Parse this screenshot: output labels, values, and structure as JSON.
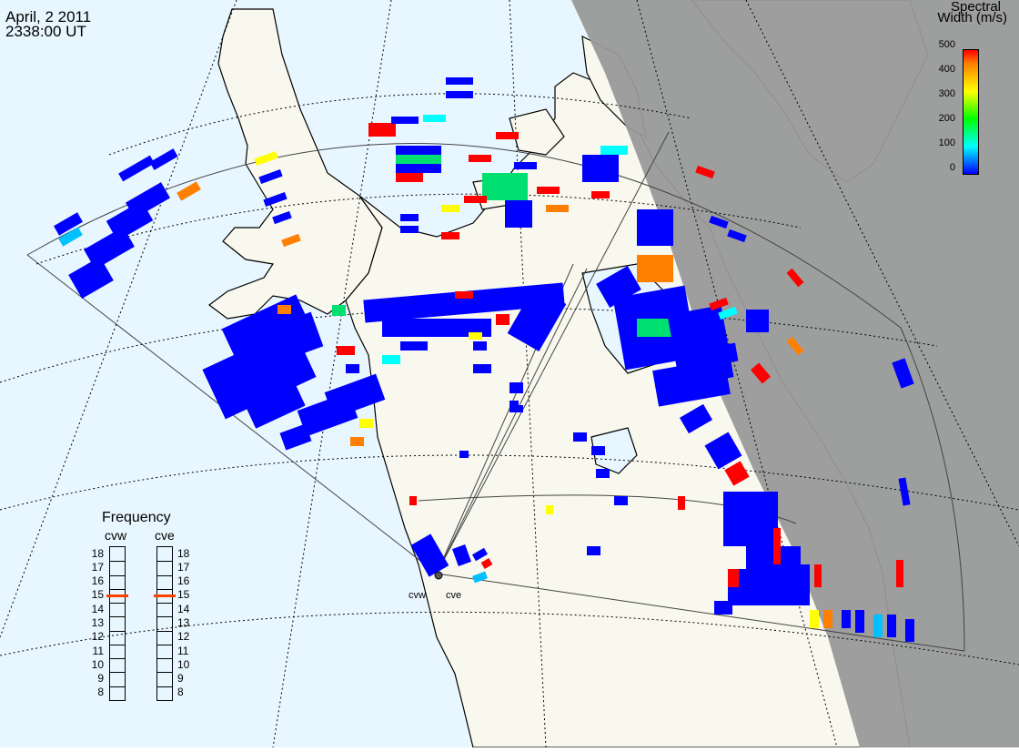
{
  "header": {
    "date": "April, 2 2011",
    "time": "2338:00 UT"
  },
  "colorbar": {
    "title_line1": "Spectral",
    "title_line2": "Width (m/s)",
    "ticks": [
      "500",
      "400",
      "300",
      "200",
      "100",
      "0"
    ],
    "scale": [
      "#0000ff",
      "#0080ff",
      "#00ffff",
      "#00ff80",
      "#00ff00",
      "#80ff00",
      "#ffff00",
      "#ffc000",
      "#ff8000",
      "#ff0000"
    ]
  },
  "frequency_panel": {
    "title": "Frequency",
    "radars": [
      {
        "name": "cvw",
        "selected": "15"
      },
      {
        "name": "cve",
        "selected": "15"
      }
    ],
    "levels": [
      "18",
      "17",
      "16",
      "15",
      "14",
      "13",
      "12",
      "11",
      "10",
      "9",
      "8"
    ],
    "marker_color": "#ff4000"
  },
  "sites": [
    {
      "label": "cvw"
    },
    {
      "label": "cve"
    }
  ],
  "colors": {
    "ocean": "#e8f6ff",
    "land": "#f8f8ee",
    "night": "#999999",
    "coast": "#000000"
  }
}
